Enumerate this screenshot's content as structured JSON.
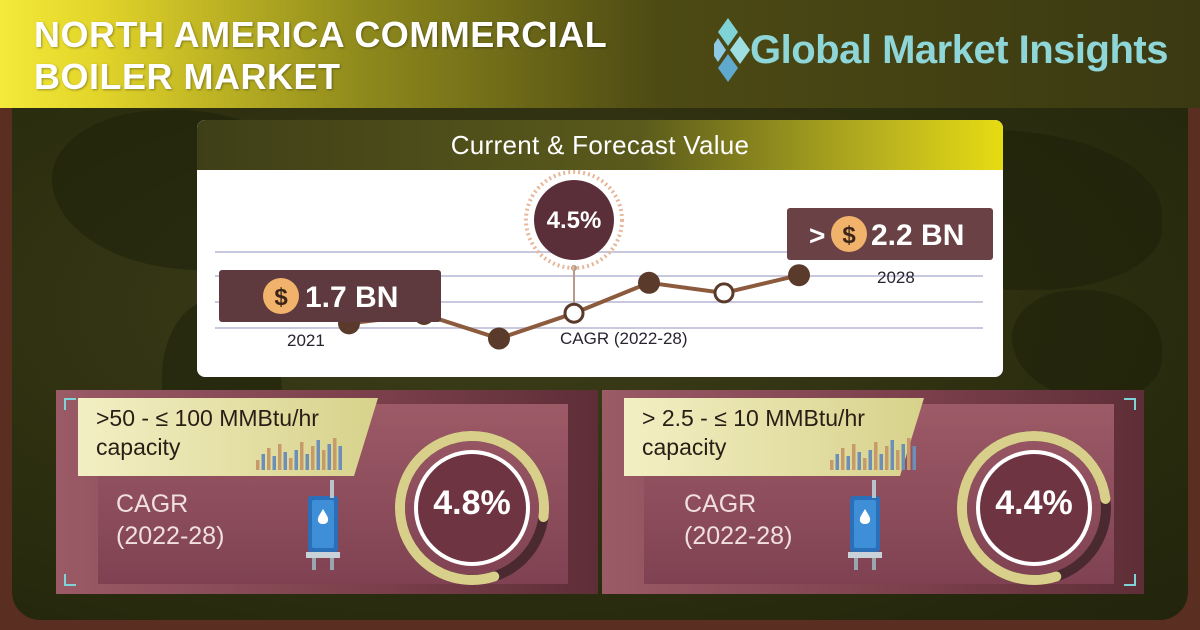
{
  "header": {
    "title_line1": "NORTH AMERICA COMMERCIAL",
    "title_line2": "BOILER MARKET",
    "brand": "Global Market Insights"
  },
  "chart_data": {
    "type": "line",
    "title": "Current & Forecast Value",
    "start": {
      "year": "2021",
      "value_label": "1.7 BN",
      "currency": "$"
    },
    "end": {
      "year": "2028",
      "value_label": "2.2 BN",
      "prefix": ">",
      "currency": "$"
    },
    "cagr": {
      "value": "4.5%",
      "label": "CAGR (2022-28)"
    },
    "points": [
      {
        "y": 1.7,
        "style": "filled"
      },
      {
        "y": 1.77,
        "style": "hollow"
      },
      {
        "y": 1.58,
        "style": "filled"
      },
      {
        "y": 1.78,
        "style": "hollow"
      },
      {
        "y": 2.02,
        "style": "filled"
      },
      {
        "y": 1.94,
        "style": "hollow"
      },
      {
        "y": 2.08,
        "style": "filled"
      }
    ],
    "ylim": [
      1.45,
      2.2
    ]
  },
  "segments": [
    {
      "label": ">50 - ≤ 100 MMBtu/hr capacity",
      "cagr_label": "CAGR (2022-28)",
      "value": "4.8%",
      "fraction": 0.82
    },
    {
      "label": "> 2.5 - ≤ 10 MMBtu/hr capacity",
      "cagr_label": "CAGR (2022-28)",
      "value": "4.4%",
      "fraction": 0.78
    }
  ],
  "colors": {
    "header_yellow": "#e3d52a",
    "line": "#8c5a3c",
    "marker": "#5a3a2a",
    "panel": "#8a4a57",
    "accent_teal": "#7fd2d6"
  }
}
